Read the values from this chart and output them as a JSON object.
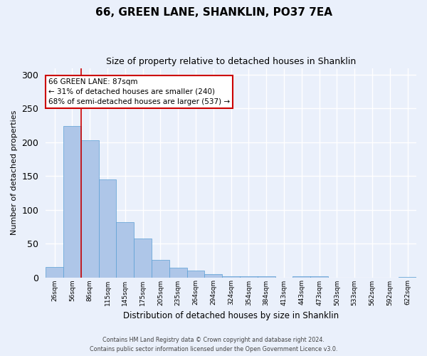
{
  "title": "66, GREEN LANE, SHANKLIN, PO37 7EA",
  "subtitle": "Size of property relative to detached houses in Shanklin",
  "xlabel": "Distribution of detached houses by size in Shanklin",
  "ylabel": "Number of detached properties",
  "bin_labels": [
    "26sqm",
    "56sqm",
    "86sqm",
    "115sqm",
    "145sqm",
    "175sqm",
    "205sqm",
    "235sqm",
    "264sqm",
    "294sqm",
    "324sqm",
    "354sqm",
    "384sqm",
    "413sqm",
    "443sqm",
    "473sqm",
    "503sqm",
    "533sqm",
    "562sqm",
    "592sqm",
    "622sqm"
  ],
  "bar_values": [
    15,
    224,
    203,
    145,
    82,
    57,
    26,
    14,
    10,
    5,
    2,
    2,
    2,
    0,
    2,
    2,
    0,
    0,
    0,
    0,
    1
  ],
  "bar_color": "#aec6e8",
  "bar_edge_color": "#5a9fd4",
  "marker_bin_index": 2,
  "annotation_title": "66 GREEN LANE: 87sqm",
  "annotation_line1": "← 31% of detached houses are smaller (240)",
  "annotation_line2": "68% of semi-detached houses are larger (537) →",
  "annotation_box_color": "#ffffff",
  "annotation_box_edge_color": "#cc0000",
  "marker_line_color": "#cc0000",
  "ylim": [
    0,
    310
  ],
  "yticks": [
    0,
    50,
    100,
    150,
    200,
    250,
    300
  ],
  "footer1": "Contains HM Land Registry data © Crown copyright and database right 2024.",
  "footer2": "Contains public sector information licensed under the Open Government Licence v3.0.",
  "background_color": "#eaf0fb",
  "plot_bg_color": "#eaf0fb",
  "grid_color": "#ffffff",
  "title_fontsize": 11,
  "subtitle_fontsize": 9
}
